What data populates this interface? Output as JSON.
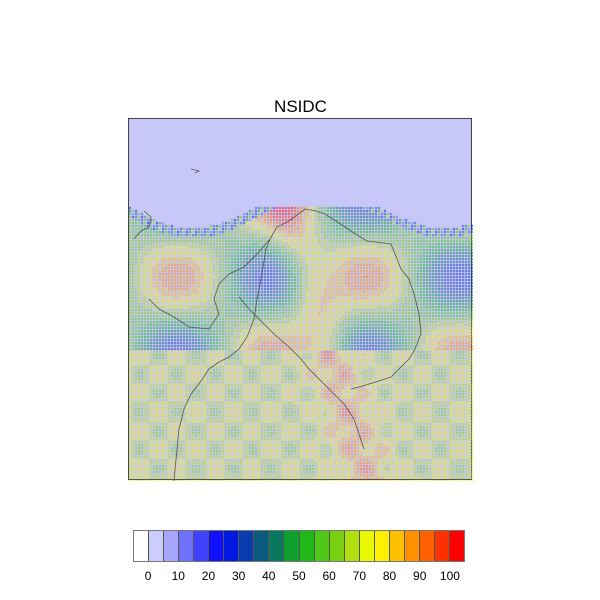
{
  "title": "NSIDC",
  "chart_data": {
    "type": "heatmap",
    "title": "NSIDC",
    "levels": [
      0,
      5,
      10,
      15,
      20,
      25,
      30,
      35,
      40,
      45,
      50,
      55,
      60,
      65,
      70,
      75,
      80,
      85,
      90,
      95,
      100
    ],
    "colors": [
      "#ffffff",
      "#ccccff",
      "#a6a6ff",
      "#7070ff",
      "#4040ff",
      "#1010ff",
      "#0018e0",
      "#0a3cb0",
      "#0a5a80",
      "#0a7860",
      "#10a030",
      "#20b818",
      "#50c818",
      "#78d010",
      "#b0e010",
      "#e8f800",
      "#fff000",
      "#ffc000",
      "#ff9000",
      "#ff6000",
      "#ff3000",
      "#ff0000"
    ],
    "tick_labels": [
      "0",
      "10",
      "20",
      "30",
      "40",
      "50",
      "60",
      "70",
      "80",
      "90",
      "100"
    ],
    "background_color": "#c8c8f8"
  }
}
